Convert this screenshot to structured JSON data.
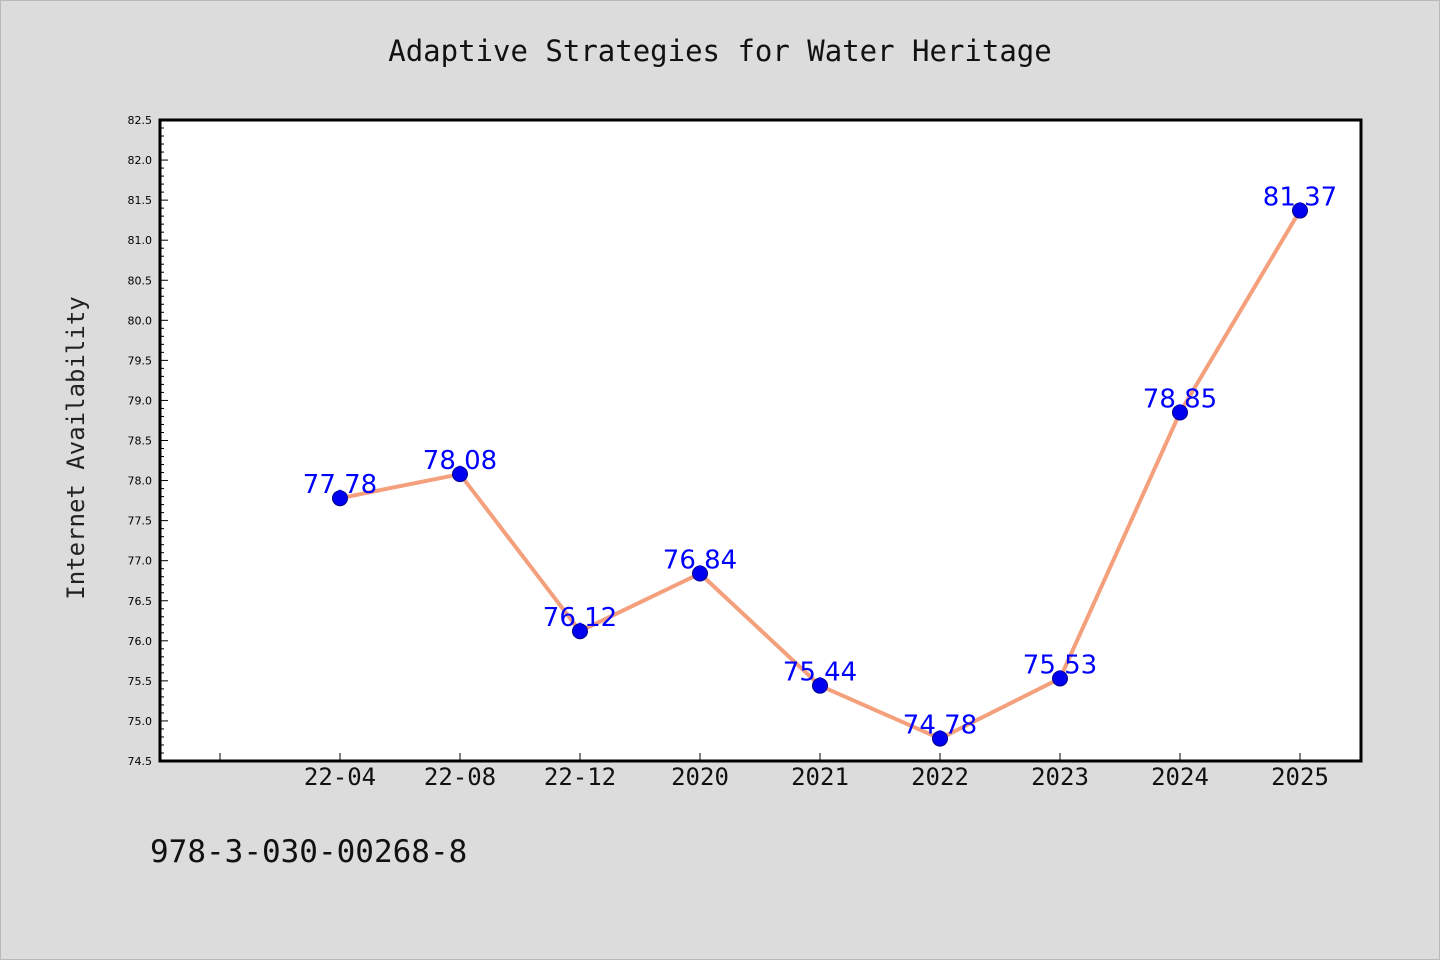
{
  "chart_data": {
    "type": "line",
    "title": "Adaptive Strategies for Water Heritage",
    "xlabel": "",
    "ylabel": "Internet Availability",
    "categories": [
      "22-04",
      "22-08",
      "22-12",
      "2020",
      "2021",
      "2022",
      "2023",
      "2024",
      "2025"
    ],
    "series": [
      {
        "values": [
          77.78,
          78.08,
          76.12,
          76.84,
          75.44,
          74.78,
          75.53,
          78.85,
          81.37
        ],
        "labels": [
          "77.78",
          "78.08",
          "76.12",
          "76.84",
          "75.44",
          "74.78",
          "75.53",
          "78.85",
          "81.37"
        ]
      }
    ],
    "ylim": [
      74.5,
      82.5
    ],
    "yticks": [
      "74.5",
      "75.0",
      "75.5",
      "76.0",
      "76.5",
      "77.0",
      "77.5",
      "78.0",
      "78.5",
      "79.0",
      "79.5",
      "80.0",
      "80.5",
      "81.0",
      "81.5",
      "82.0",
      "82.5"
    ],
    "grid": false,
    "legend": "none",
    "colors": {
      "line": "#f4a07c",
      "marker": "#0000ee",
      "marker_edge": "#00008b",
      "data_label": "#0000ff",
      "background": "#dcdcdc",
      "plot_background": "#ffffff"
    }
  },
  "footer": {
    "isbn": "978-3-030-00268-8"
  }
}
